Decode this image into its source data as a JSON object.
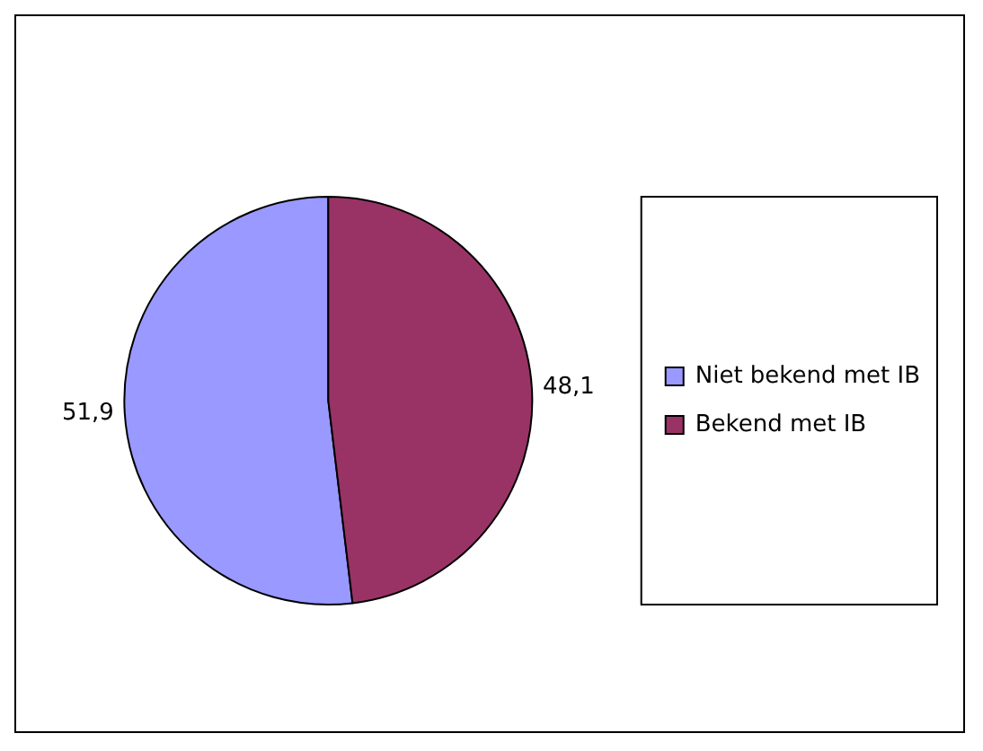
{
  "chart_data": {
    "type": "pie",
    "categories": [
      "Niet bekend met IB",
      "Bekend met IB"
    ],
    "values": [
      51.9,
      48.1
    ],
    "colors": [
      "#9999ff",
      "#993366"
    ],
    "value_labels": [
      "51,9",
      "48,1"
    ],
    "legend": "right"
  }
}
